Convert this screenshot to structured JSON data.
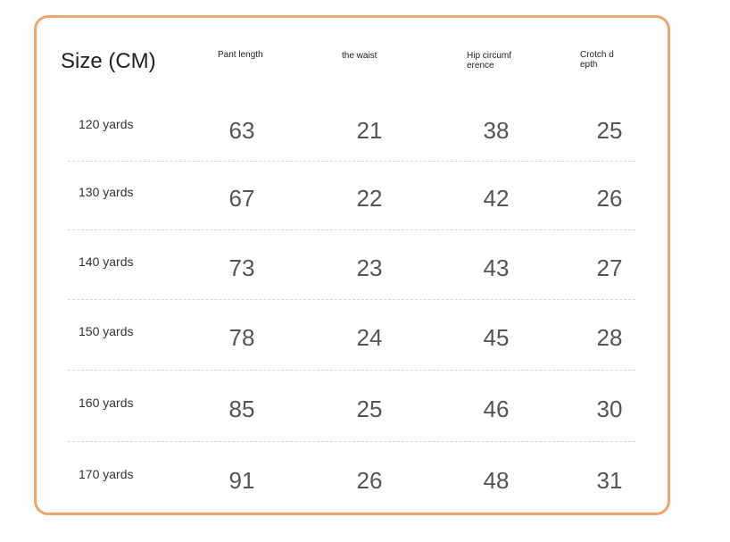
{
  "table": {
    "header": [
      "Size (CM)",
      "Pant length",
      "the waist",
      "Hip circumference",
      "Crotch depth"
    ],
    "rows": [
      [
        "120 yards",
        63,
        21,
        38,
        25
      ],
      [
        "130 yards",
        67,
        22,
        42,
        26
      ],
      [
        "140 yards",
        73,
        23,
        43,
        27
      ],
      [
        "150 yards",
        78,
        24,
        45,
        28
      ],
      [
        "160 yards",
        85,
        25,
        46,
        30
      ],
      [
        "170 yards",
        91,
        26,
        48,
        31
      ]
    ]
  }
}
